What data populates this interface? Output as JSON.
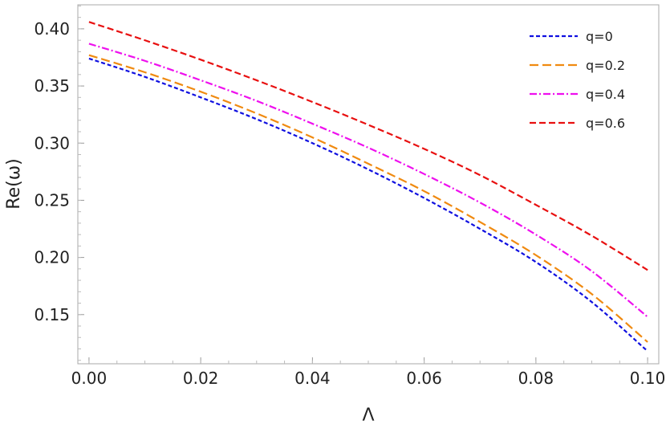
{
  "chart_data": {
    "type": "line",
    "xlabel": "Λ",
    "ylabel": "Re(ω)",
    "xlim": [
      -0.002,
      0.102
    ],
    "ylim": [
      0.107,
      0.421
    ],
    "xticks": [
      "0.00",
      "0.02",
      "0.04",
      "0.06",
      "0.08",
      "0.10"
    ],
    "xtick_values": [
      0.0,
      0.02,
      0.04,
      0.06,
      0.08,
      0.1
    ],
    "yticks": [
      "0.15",
      "0.20",
      "0.25",
      "0.30",
      "0.35",
      "0.40"
    ],
    "ytick_values": [
      0.15,
      0.2,
      0.25,
      0.3,
      0.35,
      0.4
    ],
    "legend_position": "top-right",
    "frame": true,
    "grid": false,
    "x": [
      0.0,
      0.01,
      0.02,
      0.03,
      0.04,
      0.05,
      0.06,
      0.07,
      0.08,
      0.09,
      0.1
    ],
    "series": [
      {
        "name": "q=0",
        "color": "#1010e0",
        "dash": "short",
        "values": [
          0.374,
          0.358,
          0.34,
          0.321,
          0.3,
          0.277,
          0.252,
          0.225,
          0.196,
          0.161,
          0.118
        ]
      },
      {
        "name": "q=0.2",
        "color": "#f08a10",
        "dash": "long",
        "values": [
          0.377,
          0.362,
          0.345,
          0.326,
          0.305,
          0.282,
          0.258,
          0.231,
          0.202,
          0.168,
          0.126
        ]
      },
      {
        "name": "q=0.4",
        "color": "#ee10ee",
        "dash": "dashdot",
        "values": [
          0.387,
          0.372,
          0.355,
          0.337,
          0.317,
          0.296,
          0.273,
          0.248,
          0.22,
          0.188,
          0.148
        ]
      },
      {
        "name": "q=0.6",
        "color": "#e81010",
        "dash": "medium",
        "values": [
          0.406,
          0.39,
          0.373,
          0.355,
          0.336,
          0.316,
          0.295,
          0.272,
          0.246,
          0.219,
          0.189
        ]
      }
    ]
  }
}
